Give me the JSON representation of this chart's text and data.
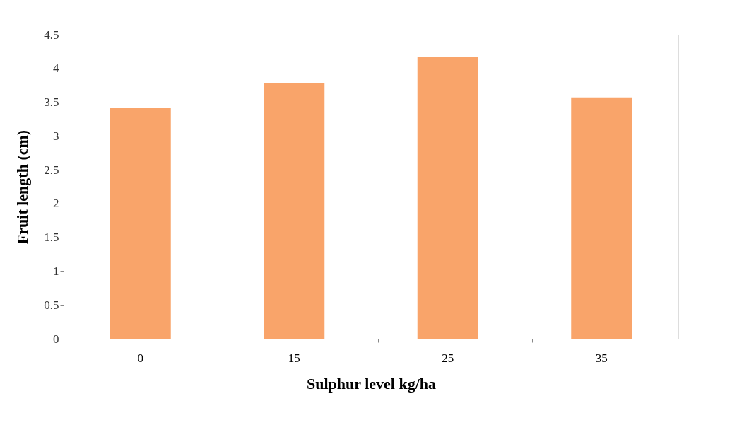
{
  "chart_data": {
    "type": "bar",
    "xlabel": "Sulphur level kg/ha",
    "ylabel": "Fruit length (cm)",
    "categories": [
      "0",
      "15",
      "25",
      "35"
    ],
    "values": [
      3.42,
      3.78,
      4.17,
      3.57
    ],
    "color": "#f9a46a",
    "ylim": [
      0,
      4.5
    ],
    "yticks": [
      0,
      0.5,
      1,
      1.5,
      2,
      2.5,
      3,
      3.5,
      4,
      4.5
    ],
    "grid": false
  }
}
